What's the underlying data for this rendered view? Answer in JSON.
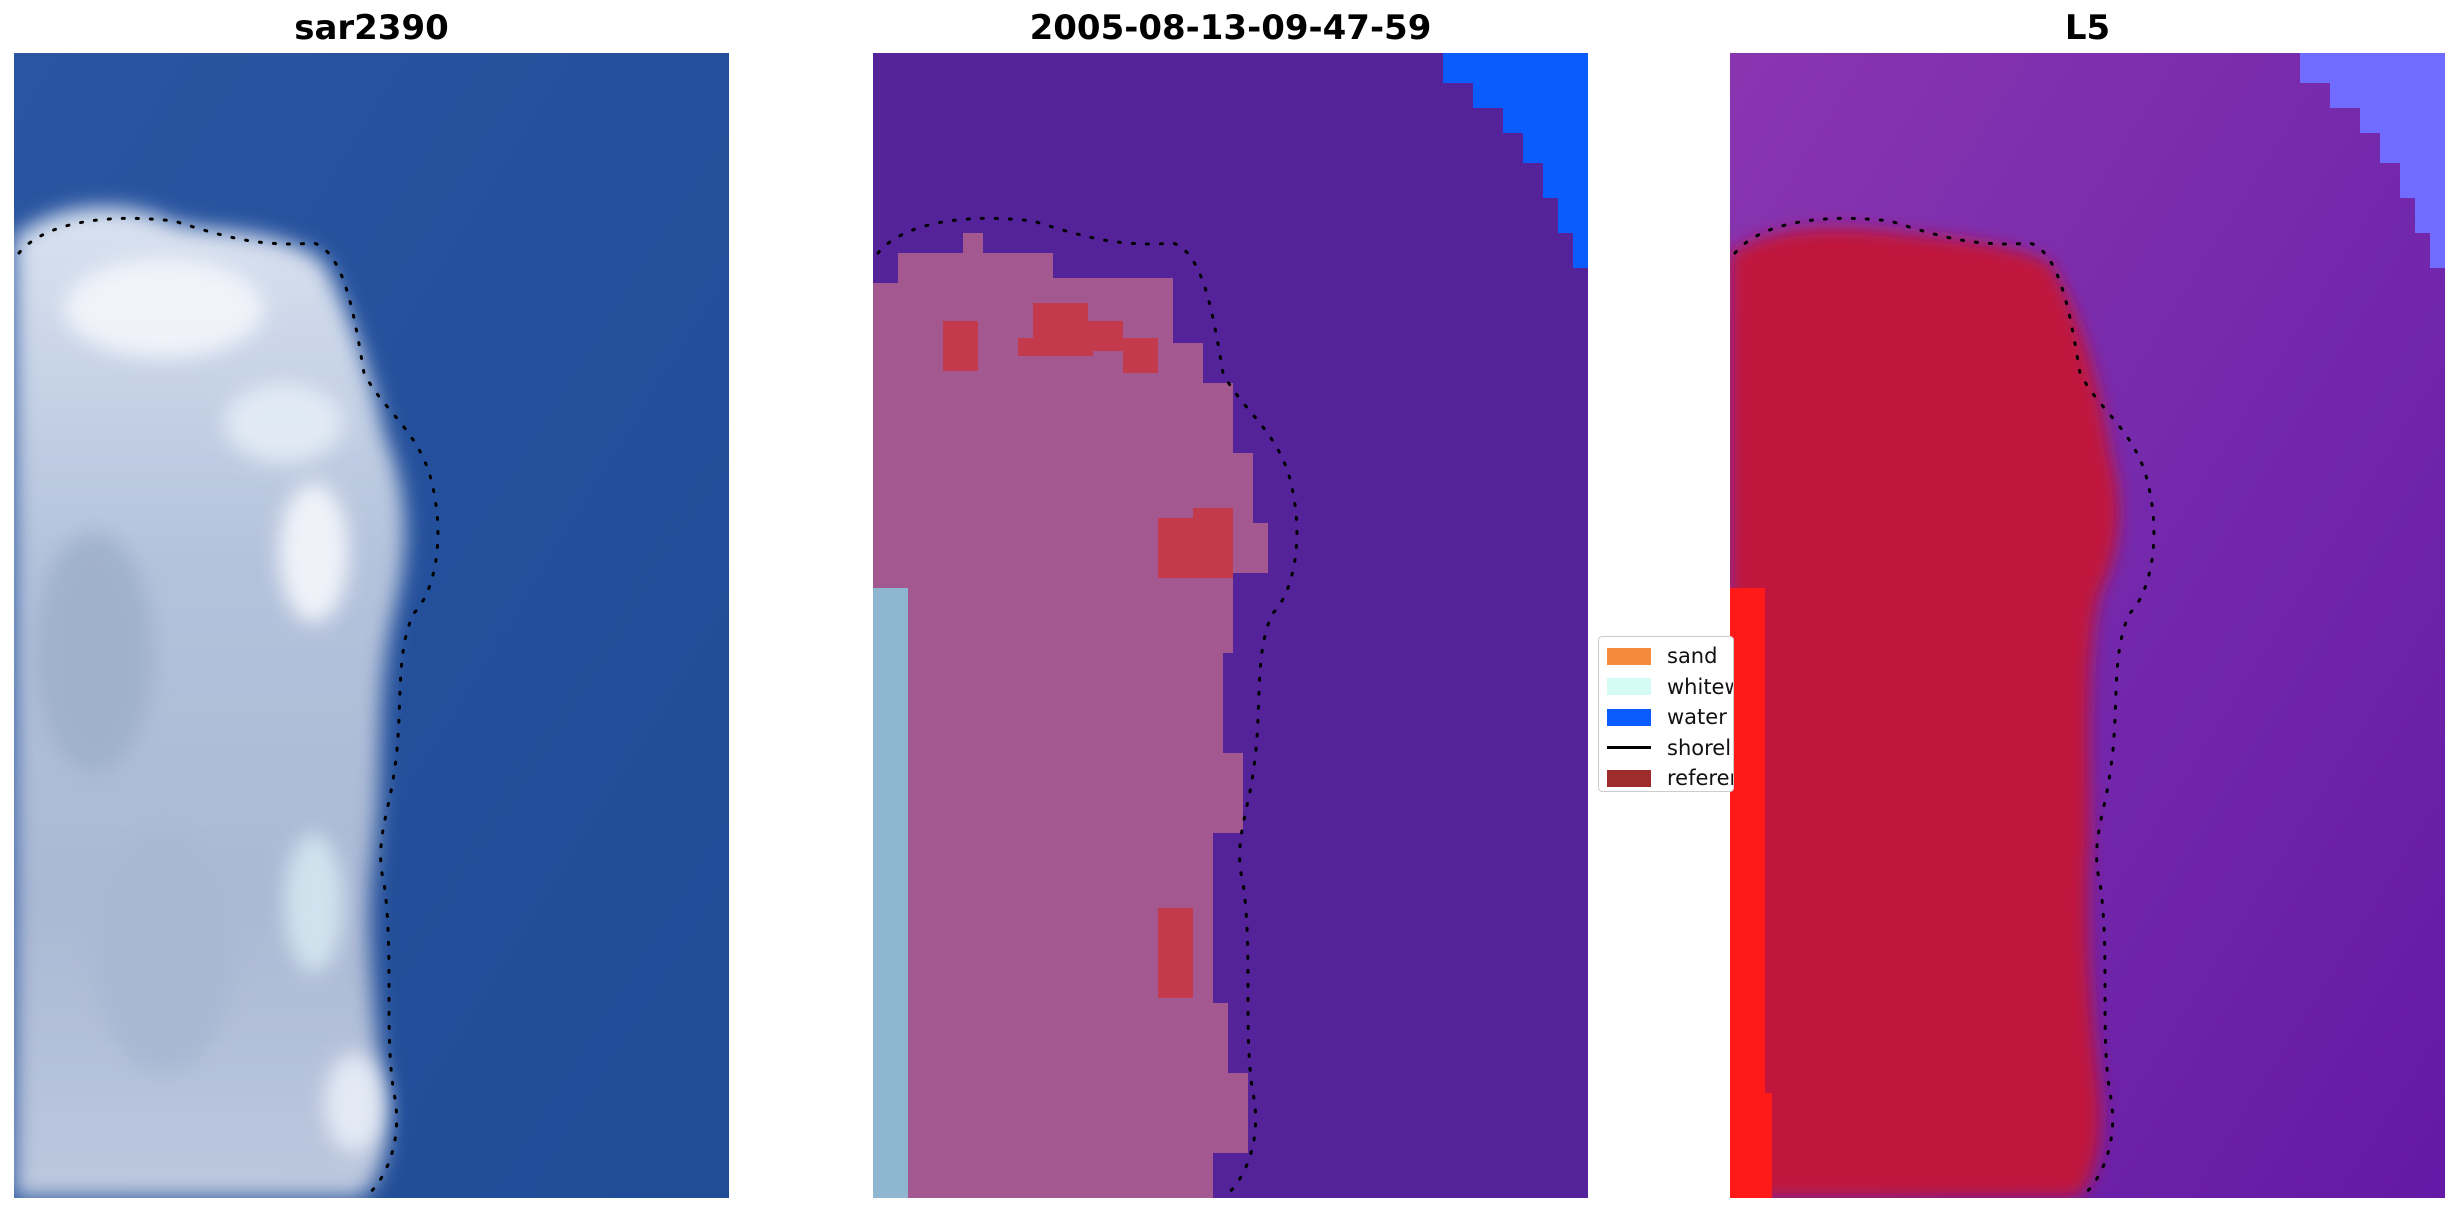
{
  "panels": [
    {
      "title": "sar2390"
    },
    {
      "title": "2005-08-13-09-47-59"
    },
    {
      "title": "L5"
    }
  ],
  "legend": {
    "items": [
      {
        "label": "sand",
        "kind": "patch",
        "color": "#f5893c"
      },
      {
        "label": "whitewater",
        "kind": "patch",
        "color": "#d5fbf6"
      },
      {
        "label": "water",
        "kind": "patch",
        "color": "#0b5cff"
      },
      {
        "label": "shoreline",
        "kind": "line",
        "color": "#000000"
      },
      {
        "label": "reference shoreline",
        "kind": "patch",
        "color": "#9e2c2c"
      }
    ]
  },
  "colors": {
    "rgb_water": "#23509a",
    "rgb_land": "#a9bcd8",
    "class_water": "#54239a",
    "class_land": "#a35890",
    "class_whitewater_edge": "#8fb6d0",
    "class_bright_water": "#0b5cff",
    "class_patch": "#c23a4c",
    "prob_water": "#7327aa",
    "prob_land": "#c0123e",
    "prob_edge": "#ff1a1a",
    "prob_corner": "#6f6cff"
  }
}
